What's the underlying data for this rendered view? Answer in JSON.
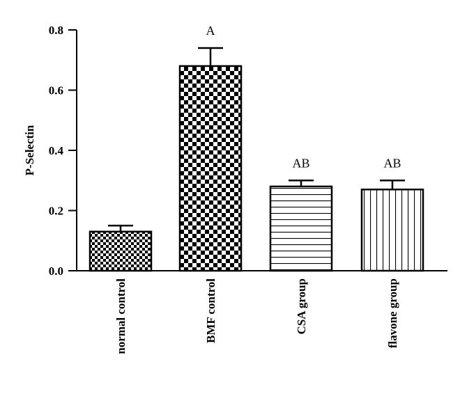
{
  "chart_data": {
    "type": "bar",
    "title": "",
    "xlabel": "",
    "ylabel": "P-Selectin",
    "ylim": [
      0,
      0.8
    ],
    "yticks": [
      "0.0",
      "0.2",
      "0.4",
      "0.6",
      "0.8"
    ],
    "categories": [
      "normal control",
      "BMF control",
      "CSA group",
      "flavone group"
    ],
    "values": [
      0.13,
      0.68,
      0.28,
      0.27
    ],
    "errors": [
      0.02,
      0.06,
      0.02,
      0.03
    ],
    "annotations": [
      "",
      "A",
      "AB",
      "AB"
    ],
    "fill_patterns": [
      "small-checkerboard",
      "large-checkerboard",
      "horizontal-stripes",
      "vertical-stripes"
    ],
    "grid": false,
    "legend": "none"
  },
  "colors": {
    "ink": "#000000",
    "background": "#ffffff"
  }
}
